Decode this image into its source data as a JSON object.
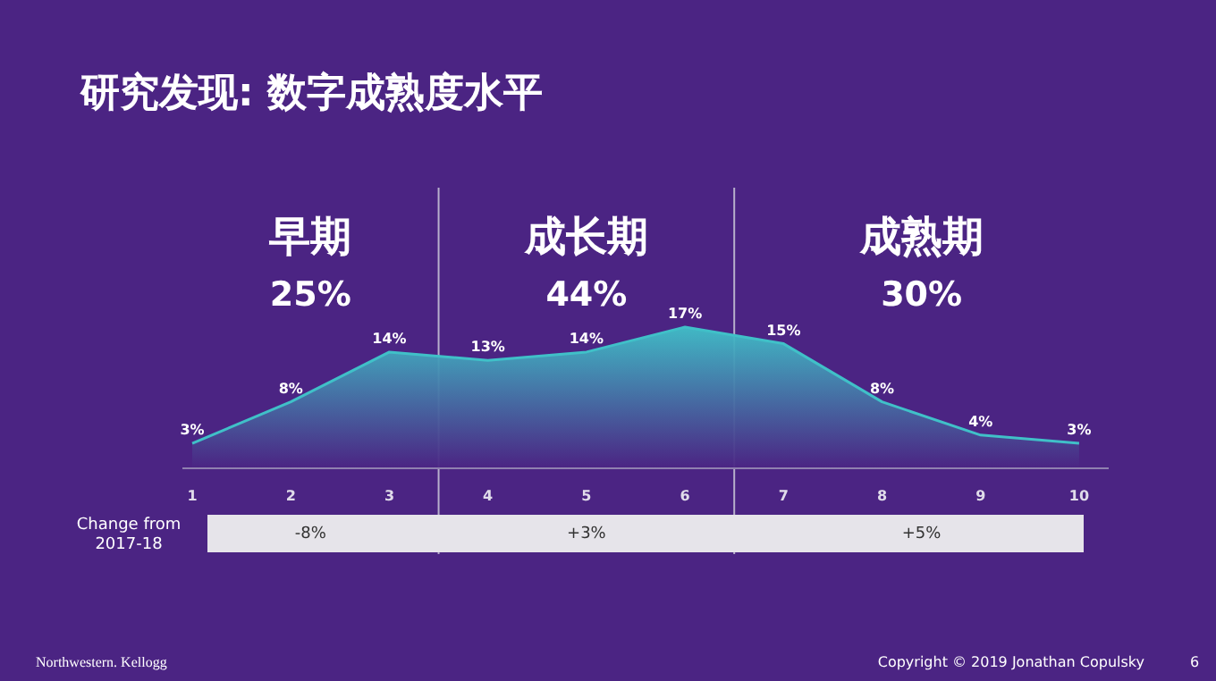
{
  "chart_data": {
    "type": "area",
    "title": "研究发现: 数字成熟度水平",
    "x": [
      1,
      2,
      3,
      4,
      5,
      6,
      7,
      8,
      9,
      10
    ],
    "series": [
      {
        "color": "#40c0c8",
        "values": [
          3,
          8,
          14,
          13,
          14,
          17,
          15,
          8,
          4,
          3
        ],
        "value_labels": [
          "3%",
          "8%",
          "14%",
          "13%",
          "14%",
          "17%",
          "15%",
          "8%",
          "4%",
          "3%"
        ]
      }
    ],
    "xlim": [
      0.9,
      10.3
    ],
    "xticks": [
      1,
      2,
      3,
      4,
      5,
      6,
      7,
      8,
      9,
      10
    ],
    "ref_lines": [
      {
        "axis": "x",
        "value": 3.5,
        "color": "#b8b0cc"
      },
      {
        "axis": "x",
        "value": 6.5,
        "color": "#b8b0cc"
      }
    ],
    "annotations": [
      "早期",
      "25%",
      "成长期",
      "44%",
      "成熟期",
      "30%",
      "Change from 2017-18",
      "-8%",
      "+3%",
      "+5%",
      "Northwestern. Kellogg",
      "Copyright © 2019 Jonathan Copulsky",
      "6"
    ],
    "grid": false
  }
}
